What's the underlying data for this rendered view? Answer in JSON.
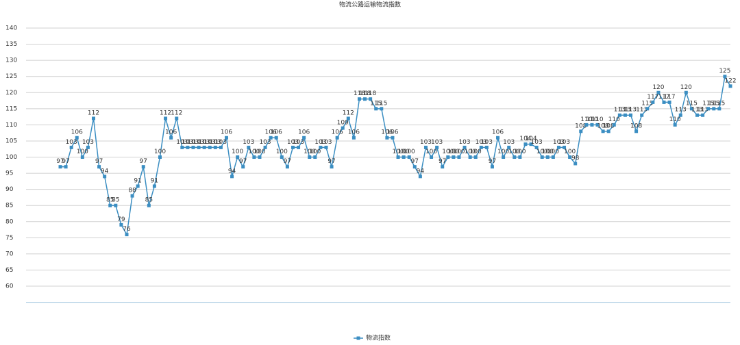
{
  "chart_data": {
    "type": "line",
    "title": "物流公路运输物流指数",
    "categories": [
      null,
      null,
      null,
      null,
      null,
      null,
      null,
      null,
      null,
      null,
      null,
      null,
      null,
      null,
      null,
      null,
      null,
      null,
      null,
      null,
      null,
      null,
      null,
      null,
      null,
      null,
      null,
      null,
      null,
      null,
      null,
      null,
      null,
      null,
      null,
      null,
      null,
      null,
      null,
      null,
      null,
      null,
      null,
      null,
      null,
      null,
      null,
      null,
      null,
      null,
      null,
      null,
      null,
      null,
      null,
      null,
      null,
      null,
      null,
      null,
      null,
      null,
      null,
      null,
      null,
      null,
      null,
      null,
      null,
      null,
      null,
      null,
      null,
      null,
      null,
      null,
      null,
      null,
      null,
      null,
      null,
      null,
      null,
      null,
      null,
      null,
      null,
      null,
      null,
      null,
      null,
      null,
      null,
      null,
      null,
      null,
      null,
      null,
      null,
      null,
      null,
      null,
      null,
      null,
      null,
      null,
      null,
      null,
      null,
      null,
      null,
      null,
      null,
      null,
      null,
      null,
      null,
      null,
      null,
      null,
      null,
      null
    ],
    "series": [
      {
        "name": "物流指数",
        "color": "#3b8ec2",
        "values": [
          97,
          97,
          103,
          106,
          100,
          103,
          112,
          97,
          94,
          85,
          85,
          79,
          76,
          88,
          91,
          97,
          85,
          91,
          100,
          112,
          106,
          112,
          103,
          103,
          103,
          103,
          103,
          103,
          103,
          103,
          106,
          94,
          100,
          97,
          103,
          100,
          100,
          103,
          106,
          106,
          100,
          97,
          103,
          103,
          106,
          100,
          100,
          103,
          103,
          97,
          106,
          109,
          112,
          106,
          118,
          118,
          118,
          115,
          115,
          106,
          106,
          100,
          100,
          100,
          97,
          94,
          103,
          100,
          103,
          97,
          100,
          100,
          100,
          103,
          100,
          100,
          103,
          103,
          97,
          106,
          100,
          103,
          100,
          100,
          104,
          104,
          103,
          100,
          100,
          100,
          103,
          103,
          100,
          98,
          108,
          110,
          110,
          110,
          108,
          108,
          110,
          113,
          113,
          113,
          108,
          113,
          115,
          117,
          120,
          117,
          117,
          110,
          113,
          120,
          115,
          113,
          113,
          115,
          115,
          115,
          125,
          122
        ]
      }
    ],
    "ylim": [
      55,
      140
    ],
    "yticks": [
      60,
      65,
      70,
      75,
      80,
      85,
      90,
      95,
      100,
      105,
      110,
      115,
      120,
      125,
      130,
      135,
      140
    ],
    "grid": true,
    "legend": "bottom"
  }
}
